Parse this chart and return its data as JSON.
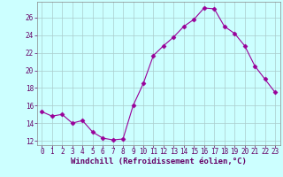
{
  "x": [
    0,
    1,
    2,
    3,
    4,
    5,
    6,
    7,
    8,
    9,
    10,
    11,
    12,
    13,
    14,
    15,
    16,
    17,
    18,
    19,
    20,
    21,
    22,
    23
  ],
  "y": [
    15.3,
    14.8,
    15.0,
    14.0,
    14.3,
    13.0,
    12.3,
    12.1,
    12.2,
    16.0,
    18.5,
    21.7,
    22.8,
    23.8,
    25.0,
    25.8,
    27.1,
    27.0,
    25.0,
    24.2,
    22.8,
    20.5,
    19.0,
    17.5
  ],
  "line_color": "#990099",
  "marker": "D",
  "markersize": 2.5,
  "linewidth": 0.8,
  "bg_color": "#ccffff",
  "grid_color": "#aacccc",
  "xlabel": "Windchill (Refroidissement éolien,°C)",
  "xlabel_fontsize": 6.5,
  "tick_fontsize": 5.5,
  "ylim": [
    11.5,
    27.8
  ],
  "xlim": [
    -0.5,
    23.5
  ],
  "yticks": [
    12,
    14,
    16,
    18,
    20,
    22,
    24,
    26
  ],
  "xticks": [
    0,
    1,
    2,
    3,
    4,
    5,
    6,
    7,
    8,
    9,
    10,
    11,
    12,
    13,
    14,
    15,
    16,
    17,
    18,
    19,
    20,
    21,
    22,
    23
  ],
  "label_color": "#660066",
  "spine_color": "#888888"
}
